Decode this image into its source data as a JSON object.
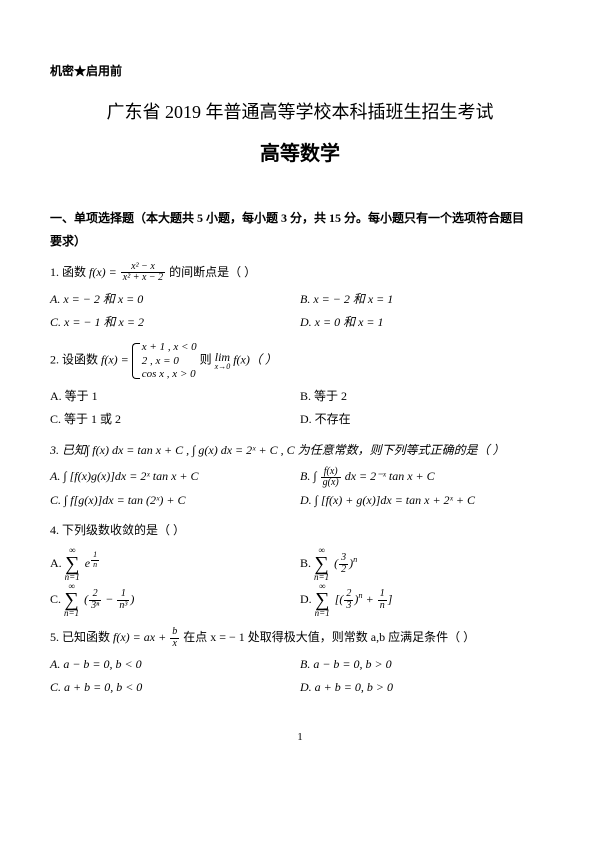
{
  "meta": {
    "confidential": "机密★启用前",
    "title_line1": "广东省 2019 年普通高等学校本科插班生招生考试",
    "title_line2": "高等数学",
    "page_number": "1"
  },
  "section1": {
    "heading_l1": "一、单项选择题（本大题共 5 小题，每小题 3 分，共 15 分。每小题只有一个选项符合题目",
    "heading_l2": "要求）"
  },
  "q1": {
    "stem_pre": "1. 函数 ",
    "stem_fx": "f(x) =",
    "frac_num": "x² − x",
    "frac_den": "x² + x − 2",
    "stem_post": " 的间断点是（  ）",
    "A": "A.  x = − 2 和 x = 0",
    "B": "B.  x = − 2 和 x = 1",
    "C": "C.  x = − 1 和 x = 2",
    "D": "D.  x = 0 和 x = 1"
  },
  "q2": {
    "stem_pre": "2. 设函数 ",
    "fx": "f(x) =",
    "p1": "x + 1 , x < 0",
    "p2": "2  , x = 0",
    "p3": "cos x , x > 0",
    "stem_mid": "  则",
    "lim": "lim",
    "lim_sub": "x→0",
    "stem_post": " f(x)（  ）",
    "A": "A. 等于 1",
    "B": "B. 等于 2",
    "C": "C. 等于 1 或 2",
    "D": "D. 不存在"
  },
  "q3": {
    "stem": "3. 已知∫ f(x) dx = tan x + C , ∫ g(x) dx = 2ˣ + C , C 为任意常数，则下列等式正确的是（  ）",
    "A": "A.  ∫ [f(x)g(x)]dx = 2ˣ tan x + C",
    "B_pre": "B.  ∫",
    "B_num": "f(x)",
    "B_den": "g(x)",
    "B_post": "dx = 2⁻ˣ tan x + C",
    "C": "C.  ∫ f[g(x)]dx = tan (2ˣ) + C",
    "D": "D.  ∫ [f(x) + g(x)]dx = tan x + 2ˣ + C"
  },
  "q4": {
    "stem": "4. 下列级数收敛的是（  ）",
    "sum_top": "∞",
    "sum_bot": "n=1",
    "A_pre": "A. ",
    "A_expr_base": "e",
    "A_exp_num": "1",
    "A_exp_den": "n",
    "B_pre": "B. ",
    "B_num": "3",
    "B_den": "2",
    "B_exp": "n",
    "C_pre": "C. ",
    "C_t1_num": "2",
    "C_t1_den": "3ⁿ",
    "C_t2_num": "1",
    "C_t2_den": "n³",
    "C_minus": " − ",
    "D_pre": "D. ",
    "D_num": "2",
    "D_den": "3",
    "D_exp": "n",
    "D_plus_num": "1",
    "D_plus_den": "n",
    "D_plus": " + "
  },
  "q5": {
    "stem_pre": "5.  已知函数 ",
    "fx": "f(x) = ax +",
    "frac_num": "b",
    "frac_den": "x",
    "stem_mid": "在点 x = − 1 处取得极大值，则常数 a,b 应满足条件（  ）",
    "A": "A.  a − b = 0, b < 0",
    "B": "B.  a − b = 0, b > 0",
    "C": "C.  a + b = 0, b < 0",
    "D": "D.  a + b = 0, b > 0"
  }
}
